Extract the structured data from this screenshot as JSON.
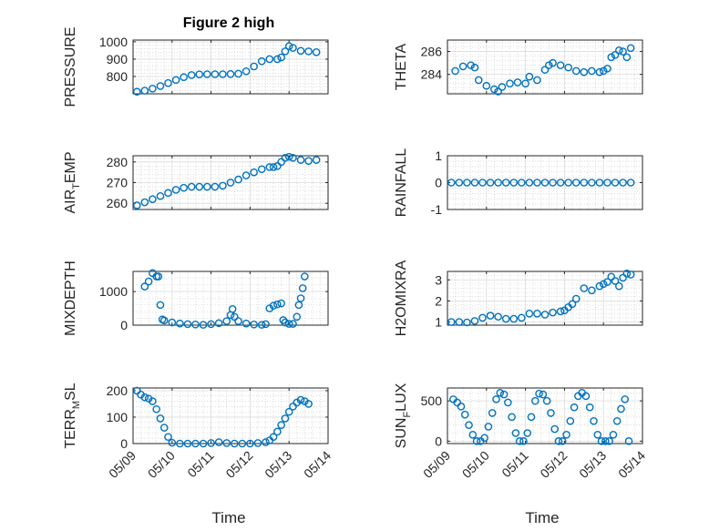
{
  "figure": {
    "title": "Figure 2 high",
    "xlabel": "Time"
  },
  "colors": {
    "marker": "#0072BD",
    "axis": "#262626",
    "grid": "#c8c8c8",
    "background": "#ffffff"
  },
  "chart_data": [
    {
      "type": "scatter",
      "ylabel": "PRESSURE",
      "ylabel_sub": "",
      "ylim": [
        700,
        1010
      ],
      "yticks": [
        800,
        900,
        1000
      ],
      "yticklabels": [
        "800",
        "900",
        "1000"
      ],
      "xlim": [
        0,
        5
      ],
      "grid": true,
      "title": "Figure 2 high",
      "x": [
        0.1,
        0.3,
        0.5,
        0.7,
        0.9,
        1.1,
        1.3,
        1.5,
        1.7,
        1.9,
        2.1,
        2.3,
        2.5,
        2.7,
        2.9,
        3.1,
        3.3,
        3.5,
        3.7,
        3.8,
        3.9,
        4.0,
        4.1,
        4.3,
        4.5,
        4.7
      ],
      "y": [
        712,
        718,
        730,
        745,
        762,
        780,
        796,
        808,
        812,
        813,
        813,
        813,
        814,
        816,
        830,
        858,
        888,
        900,
        900,
        910,
        945,
        975,
        965,
        948,
        945,
        940
      ]
    },
    {
      "type": "scatter",
      "ylabel": "THETA",
      "ylabel_sub": "",
      "ylim": [
        282.3,
        287
      ],
      "yticks": [
        284,
        286
      ],
      "yticklabels": [
        "284",
        "286"
      ],
      "xlim": [
        0,
        5
      ],
      "grid": true,
      "x": [
        0.2,
        0.4,
        0.6,
        0.7,
        0.8,
        1.0,
        1.2,
        1.3,
        1.4,
        1.6,
        1.8,
        2.0,
        2.1,
        2.3,
        2.5,
        2.6,
        2.7,
        2.9,
        3.1,
        3.3,
        3.5,
        3.7,
        3.9,
        4.0,
        4.1,
        4.2,
        4.3,
        4.4,
        4.5,
        4.6,
        4.7
      ],
      "y": [
        284.3,
        284.7,
        284.8,
        284.6,
        283.5,
        283.0,
        282.7,
        282.5,
        282.9,
        283.2,
        283.3,
        283.2,
        283.8,
        283.5,
        284.4,
        284.8,
        285.0,
        284.8,
        284.6,
        284.3,
        284.2,
        284.3,
        284.2,
        284.3,
        284.5,
        285.5,
        285.7,
        286.1,
        286.0,
        285.5,
        286.3
      ]
    },
    {
      "type": "scatter",
      "ylabel": "AIR",
      "ylabel_sub": "T",
      "ylabel_rest": "EMP",
      "ylim": [
        257,
        283
      ],
      "yticks": [
        260,
        270,
        280
      ],
      "yticklabels": [
        "260",
        "270",
        "280"
      ],
      "xlim": [
        0,
        5
      ],
      "grid": true,
      "x": [
        0.1,
        0.3,
        0.5,
        0.7,
        0.9,
        1.1,
        1.3,
        1.5,
        1.7,
        1.9,
        2.1,
        2.3,
        2.5,
        2.7,
        2.9,
        3.1,
        3.3,
        3.5,
        3.6,
        3.7,
        3.8,
        3.9,
        4.0,
        4.1,
        4.3,
        4.5,
        4.7
      ],
      "y": [
        259,
        260.5,
        262,
        263.5,
        265,
        266.5,
        267.5,
        268,
        268,
        268,
        268,
        268.5,
        270,
        271.5,
        273.5,
        275,
        276.5,
        277.5,
        277.5,
        278,
        280,
        282,
        282.5,
        282,
        281,
        280.5,
        281
      ]
    },
    {
      "type": "scatter",
      "ylabel": "RAINFALL",
      "ylabel_sub": "",
      "ylim": [
        -1,
        1
      ],
      "yticks": [
        -1,
        0,
        1
      ],
      "yticklabels": [
        "-1",
        "0",
        "1"
      ],
      "xlim": [
        0,
        5
      ],
      "grid": true,
      "x": [
        0.1,
        0.3,
        0.5,
        0.7,
        0.9,
        1.1,
        1.3,
        1.5,
        1.7,
        1.9,
        2.1,
        2.3,
        2.5,
        2.7,
        2.9,
        3.1,
        3.3,
        3.5,
        3.7,
        3.9,
        4.1,
        4.3,
        4.5,
        4.7
      ],
      "y": [
        0,
        0,
        0,
        0,
        0,
        0,
        0,
        0,
        0,
        0,
        0,
        0,
        0,
        0,
        0,
        0,
        0,
        0,
        0,
        0,
        0,
        0,
        0,
        0
      ]
    },
    {
      "type": "scatter",
      "ylabel": "MIXDEPTH",
      "ylabel_sub": "",
      "ylim": [
        0,
        1600
      ],
      "yticks": [
        0,
        1000
      ],
      "yticklabels": [
        "0",
        "1000"
      ],
      "xlim": [
        0,
        5
      ],
      "grid": true,
      "x": [
        0.3,
        0.4,
        0.5,
        0.6,
        0.65,
        0.7,
        0.75,
        0.8,
        1.0,
        1.2,
        1.4,
        1.6,
        1.8,
        2.0,
        2.2,
        2.4,
        2.5,
        2.55,
        2.6,
        2.7,
        2.9,
        3.1,
        3.3,
        3.4,
        3.5,
        3.6,
        3.7,
        3.8,
        3.85,
        3.9,
        4.0,
        4.1,
        4.2,
        4.25,
        4.3,
        4.35,
        4.4
      ],
      "y": [
        1150,
        1300,
        1550,
        1450,
        1450,
        600,
        170,
        140,
        80,
        50,
        30,
        20,
        10,
        30,
        60,
        120,
        300,
        480,
        250,
        120,
        50,
        20,
        10,
        30,
        500,
        580,
        620,
        650,
        150,
        80,
        40,
        40,
        250,
        600,
        800,
        1100,
        1450
      ]
    },
    {
      "type": "scatter",
      "ylabel": "H2OMIXRA",
      "ylabel_sub": "",
      "ylim": [
        0.85,
        3.4
      ],
      "yticks": [
        1,
        2,
        3
      ],
      "yticklabels": [
        "1",
        "2",
        "3"
      ],
      "xlim": [
        0,
        5
      ],
      "grid": true,
      "x": [
        0.1,
        0.3,
        0.5,
        0.7,
        0.9,
        1.1,
        1.3,
        1.5,
        1.7,
        1.9,
        2.1,
        2.3,
        2.5,
        2.7,
        2.9,
        3.0,
        3.1,
        3.2,
        3.3,
        3.5,
        3.7,
        3.9,
        4.0,
        4.1,
        4.2,
        4.3,
        4.4,
        4.5,
        4.6,
        4.7
      ],
      "y": [
        1.0,
        1.0,
        0.98,
        1.05,
        1.2,
        1.3,
        1.25,
        1.15,
        1.15,
        1.2,
        1.4,
        1.4,
        1.35,
        1.45,
        1.5,
        1.55,
        1.7,
        1.85,
        2.1,
        2.6,
        2.5,
        2.7,
        2.8,
        2.9,
        3.15,
        2.95,
        2.7,
        3.1,
        3.3,
        3.25
      ]
    },
    {
      "type": "scatter",
      "ylabel": "TERR",
      "ylabel_sub": "M",
      "ylabel_rest": "SL",
      "ylim": [
        0,
        210
      ],
      "yticks": [
        0,
        100,
        200
      ],
      "yticklabels": [
        "0",
        "100",
        "200"
      ],
      "xlim": [
        0,
        5
      ],
      "grid": true,
      "x": [
        0.1,
        0.2,
        0.3,
        0.4,
        0.5,
        0.6,
        0.7,
        0.8,
        0.9,
        1.0,
        1.2,
        1.4,
        1.6,
        1.8,
        2.0,
        2.2,
        2.4,
        2.6,
        2.8,
        3.0,
        3.2,
        3.4,
        3.5,
        3.6,
        3.7,
        3.8,
        3.9,
        4.0,
        4.1,
        4.2,
        4.3,
        4.4,
        4.5
      ],
      "y": [
        200,
        185,
        175,
        170,
        160,
        130,
        95,
        60,
        25,
        3,
        0,
        0,
        0,
        0,
        2,
        5,
        2,
        0,
        0,
        0,
        2,
        5,
        12,
        25,
        45,
        70,
        95,
        120,
        140,
        155,
        165,
        160,
        150
      ]
    },
    {
      "type": "scatter",
      "ylabel": "SUN",
      "ylabel_sub": "F",
      "ylabel_rest": "LUX",
      "ylim": [
        -30,
        660
      ],
      "yticks": [
        0,
        500
      ],
      "yticklabels": [
        "0",
        "500"
      ],
      "xlim": [
        0,
        5
      ],
      "grid": true,
      "x": [
        0.15,
        0.25,
        0.35,
        0.45,
        0.55,
        0.65,
        0.75,
        0.85,
        0.95,
        1.05,
        1.15,
        1.25,
        1.35,
        1.45,
        1.55,
        1.65,
        1.75,
        1.85,
        1.95,
        2.05,
        2.15,
        2.25,
        2.35,
        2.45,
        2.55,
        2.65,
        2.75,
        2.85,
        2.95,
        3.05,
        3.15,
        3.25,
        3.35,
        3.45,
        3.55,
        3.65,
        3.75,
        3.85,
        3.95,
        4.05,
        4.15,
        4.25,
        4.35,
        4.45,
        4.55,
        4.65
      ],
      "y": [
        520,
        480,
        430,
        330,
        200,
        80,
        0,
        0,
        40,
        180,
        350,
        520,
        600,
        580,
        480,
        300,
        100,
        0,
        0,
        100,
        300,
        500,
        590,
        580,
        500,
        350,
        150,
        0,
        0,
        80,
        250,
        420,
        560,
        600,
        560,
        420,
        250,
        80,
        0,
        0,
        0,
        80,
        250,
        400,
        520,
        0
      ]
    }
  ],
  "x_axis": {
    "ticks": [
      0,
      1,
      2,
      3,
      4,
      5
    ],
    "ticklabels": [
      "05/09",
      "05/10",
      "05/11",
      "05/12",
      "05/13",
      "05/14"
    ]
  }
}
